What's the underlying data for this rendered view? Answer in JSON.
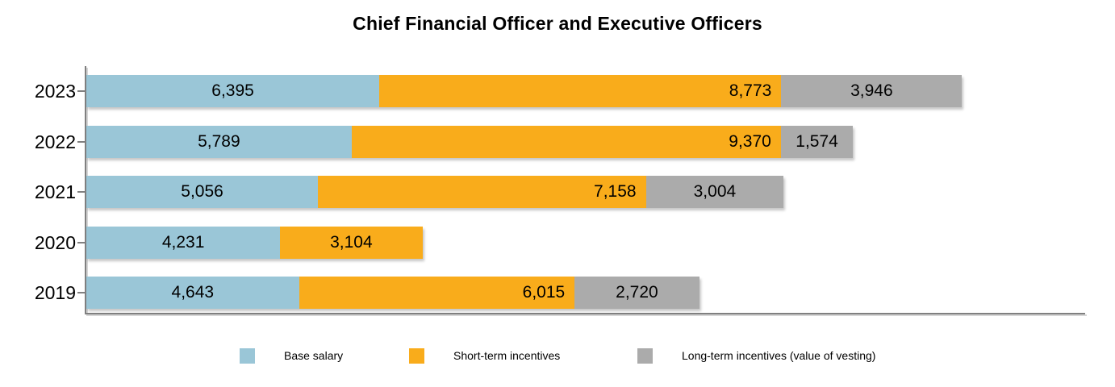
{
  "chart_data": {
    "type": "bar",
    "orientation": "horizontal",
    "stacked": true,
    "title": "Chief Financial Officer and Executive Officers",
    "categories": [
      "2023",
      "2022",
      "2021",
      "2020",
      "2019"
    ],
    "series": [
      {
        "name": "Base salary",
        "color": "#9AC6D7",
        "values": [
          6395,
          5789,
          5056,
          4231,
          4643
        ]
      },
      {
        "name": "Short-term incentives",
        "color": "#F9AC1B",
        "values": [
          8773,
          9370,
          7158,
          3104,
          6015
        ]
      },
      {
        "name": "Long-term incentives (value of vesting)",
        "color": "#ABABAB",
        "values": [
          3946,
          1574,
          3004,
          0,
          2720
        ]
      }
    ],
    "data_labels": {
      "position": "inside",
      "values": [
        [
          "6,395",
          "8,773",
          "3,946"
        ],
        [
          "5,789",
          "9,370",
          "1,574"
        ],
        [
          "5,056",
          "7,158",
          "3,004"
        ],
        [
          "4,231",
          "3,104",
          ""
        ],
        [
          "4,643",
          "6,015",
          "2,720"
        ]
      ]
    },
    "xlim": [
      0,
      21800
    ],
    "grid": false,
    "legend_position": "bottom",
    "axis_color": "#808080"
  },
  "legend": {
    "items": [
      {
        "label": "Base salary",
        "color": "#9AC6D7"
      },
      {
        "label": "Short-term incentives",
        "color": "#F9AC1B"
      },
      {
        "label": "Long-term incentives (value of vesting)",
        "color": "#ABABAB"
      }
    ]
  }
}
